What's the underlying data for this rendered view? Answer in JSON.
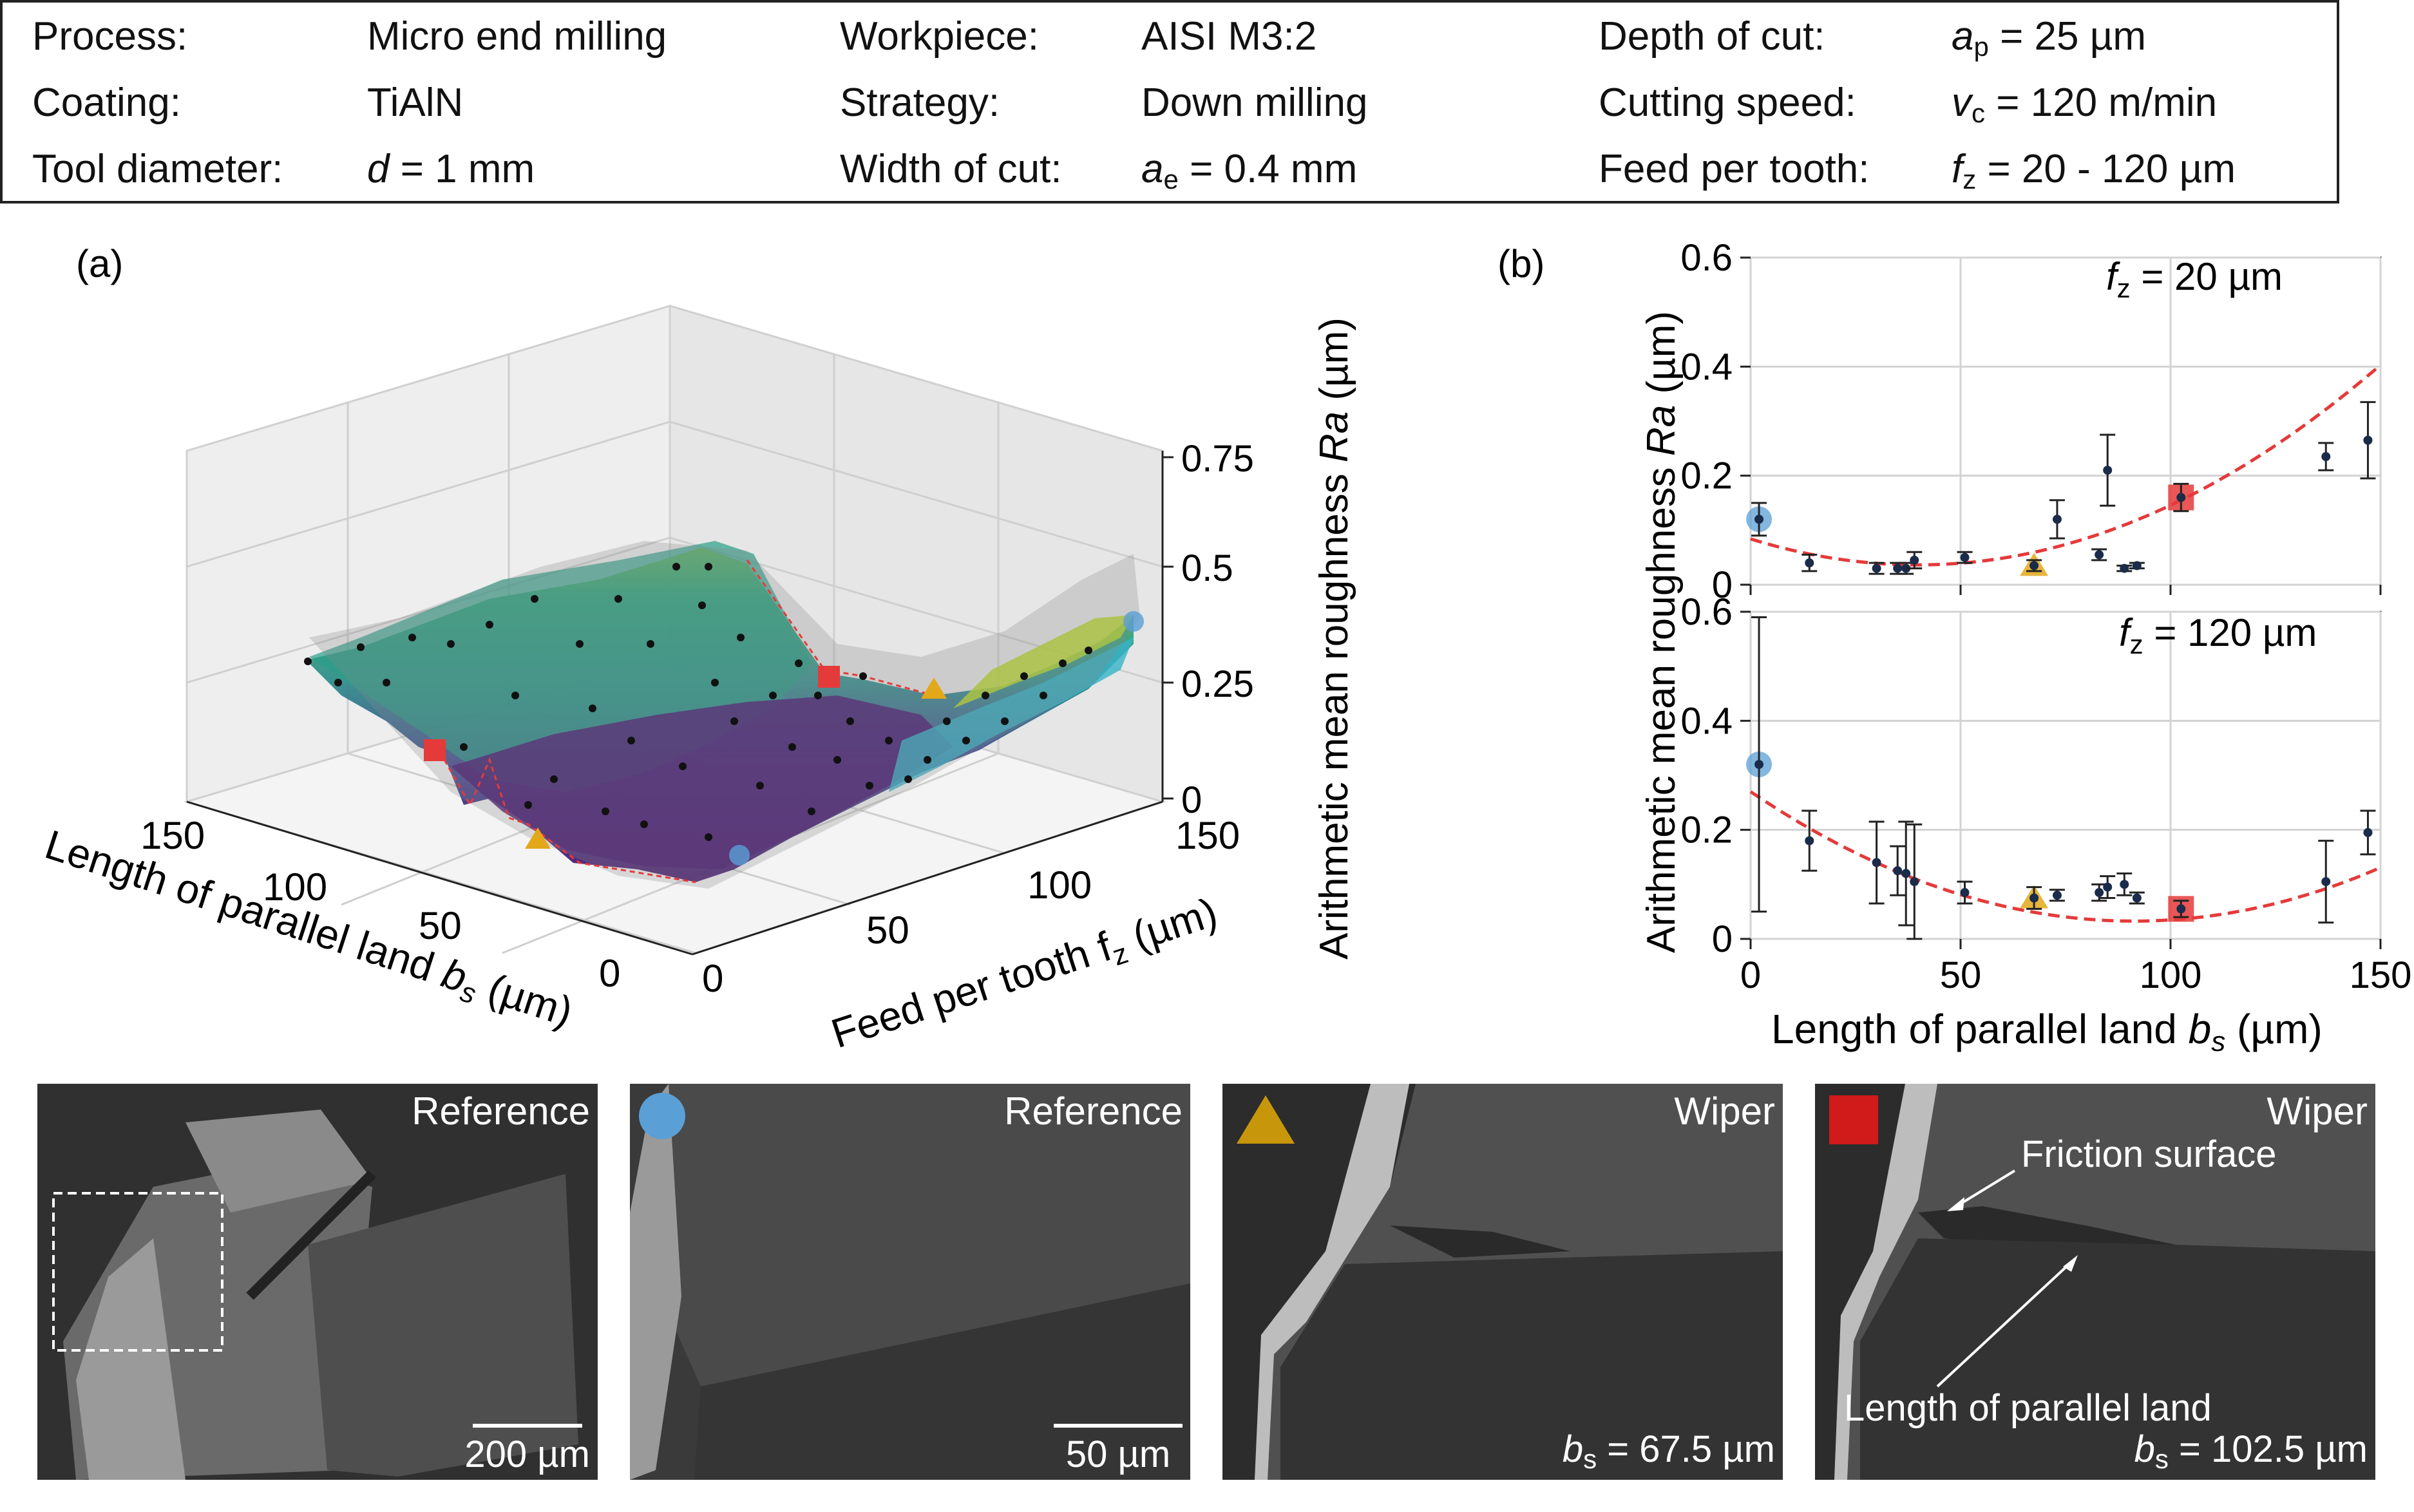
{
  "params": {
    "col1": [
      {
        "label": "Process:",
        "value": "Micro end milling"
      },
      {
        "label": "Coating:",
        "value": "TiAlN"
      },
      {
        "label": "Tool diameter:",
        "value_var": "d",
        "value_rest": " = 1 mm"
      }
    ],
    "col2": [
      {
        "label": "Workpiece:",
        "value": "AISI M3:2"
      },
      {
        "label": "Strategy:",
        "value": "Down milling"
      },
      {
        "label": "Width of cut:",
        "value_var": "a",
        "value_sub": "e",
        "value_rest": " = 0.4 mm"
      }
    ],
    "col3": [
      {
        "label": "Depth of cut:",
        "value_var": "a",
        "value_sub": "p",
        "value_rest": " = 25 µm"
      },
      {
        "label": "Cutting speed:",
        "value_var": "v",
        "value_sub": "c",
        "value_rest": " = 120 m/min"
      },
      {
        "label": "Feed per tooth:",
        "value_var": "f",
        "value_sub": "z",
        "value_rest": " = 20 - 120 µm"
      }
    ]
  },
  "panel_a": {
    "label": "(a)",
    "z_label_main": "Arithmetic mean roughness ",
    "z_label_var": "Ra",
    "z_label_unit": " (µm)",
    "z_ticks": [
      "0",
      "0.25",
      "0.5",
      "0.75"
    ],
    "x_label_main": "Length of parallel land ",
    "x_label_var": "b",
    "x_label_sub": "s",
    "x_label_unit": " (µm)",
    "x_ticks": [
      "150",
      "100",
      "50",
      "0"
    ],
    "y_label_main": "Feed per tooth f",
    "y_label_sub": "z",
    "y_label_unit": " (µm)",
    "y_ticks": [
      "0",
      "50",
      "100",
      "150"
    ]
  },
  "panel_b": {
    "label": "(b)",
    "ylabel_main": "Arithmetic mean roughness ",
    "ylabel_var": "Ra",
    "ylabel_unit": " (µm)",
    "xlabel_main": "Length of parallel land ",
    "xlabel_var": "b",
    "xlabel_sub": "s",
    "xlabel_unit": " (µm)",
    "x_ticks": [
      "0",
      "50",
      "100",
      "150"
    ],
    "y_ticks": [
      "0",
      "0.2",
      "0.4",
      "0.6"
    ],
    "top_annot_var": "f",
    "top_annot_sub": "z",
    "top_annot_rest": " = 20 µm",
    "bot_annot_var": "f",
    "bot_annot_sub": "z",
    "bot_annot_rest": " = 120 µm"
  },
  "chart_data": [
    {
      "type": "scatter",
      "title": "fz = 20 µm",
      "xlabel": "Length of parallel land bs (µm)",
      "ylabel": "Arithmetic mean roughness Ra (µm)",
      "xlim": [
        0,
        150
      ],
      "ylim": [
        0,
        0.6
      ],
      "points": [
        {
          "x": 2,
          "y": 0.12,
          "err": 0.03
        },
        {
          "x": 14,
          "y": 0.04,
          "err": 0.015
        },
        {
          "x": 30,
          "y": 0.03,
          "err": 0.01
        },
        {
          "x": 35,
          "y": 0.03,
          "err": 0.01
        },
        {
          "x": 37,
          "y": 0.03,
          "err": 0.01
        },
        {
          "x": 39,
          "y": 0.045,
          "err": 0.015
        },
        {
          "x": 51,
          "y": 0.05,
          "err": 0.01
        },
        {
          "x": 67.5,
          "y": 0.035,
          "err": 0.01
        },
        {
          "x": 73,
          "y": 0.12,
          "err": 0.035
        },
        {
          "x": 83,
          "y": 0.055,
          "err": 0.01
        },
        {
          "x": 85,
          "y": 0.21,
          "err": 0.065
        },
        {
          "x": 89,
          "y": 0.03,
          "err": 0.005
        },
        {
          "x": 92,
          "y": 0.035,
          "err": 0.005
        },
        {
          "x": 102.5,
          "y": 0.16,
          "err": 0.025
        },
        {
          "x": 137,
          "y": 0.235,
          "err": 0.025
        },
        {
          "x": 147,
          "y": 0.265,
          "err": 0.07
        }
      ],
      "fit": {
        "type": "quadratic",
        "a": 3.018e-05,
        "b": -0.0024,
        "c": 0.084
      },
      "highlight": [
        {
          "marker": "circle",
          "color": "#5a9fd6",
          "x": 2,
          "y": 0.12
        },
        {
          "marker": "triangle",
          "color": "#e3a81a",
          "x": 67.5,
          "y": 0.035
        },
        {
          "marker": "square",
          "color": "#e53a3a",
          "x": 102.5,
          "y": 0.16
        }
      ]
    },
    {
      "type": "scatter",
      "title": "fz = 120 µm",
      "xlabel": "Length of parallel land bs (µm)",
      "ylabel": "Arithmetic mean roughness Ra (µm)",
      "xlim": [
        0,
        150
      ],
      "ylim": [
        0,
        0.6
      ],
      "points": [
        {
          "x": 2,
          "y": 0.32,
          "err": 0.27
        },
        {
          "x": 14,
          "y": 0.18,
          "err": 0.055
        },
        {
          "x": 30,
          "y": 0.14,
          "err": 0.075
        },
        {
          "x": 35,
          "y": 0.125,
          "err": 0.045
        },
        {
          "x": 37,
          "y": 0.12,
          "err": 0.095
        },
        {
          "x": 39,
          "y": 0.105,
          "err": 0.105
        },
        {
          "x": 51,
          "y": 0.085,
          "err": 0.02
        },
        {
          "x": 67.5,
          "y": 0.075,
          "err": 0.02
        },
        {
          "x": 73,
          "y": 0.08,
          "err": 0.01
        },
        {
          "x": 83,
          "y": 0.085,
          "err": 0.015
        },
        {
          "x": 85,
          "y": 0.095,
          "err": 0.02
        },
        {
          "x": 89,
          "y": 0.1,
          "err": 0.02
        },
        {
          "x": 92,
          "y": 0.075,
          "err": 0.01
        },
        {
          "x": 102.5,
          "y": 0.055,
          "err": 0.015
        },
        {
          "x": 137,
          "y": 0.105,
          "err": 0.075
        },
        {
          "x": 147,
          "y": 0.195,
          "err": 0.04
        }
      ],
      "fit": {
        "type": "quadratic",
        "a": 2.848e-05,
        "b": -0.0052,
        "c": 0.27
      },
      "highlight": [
        {
          "marker": "circle",
          "color": "#5a9fd6",
          "x": 2,
          "y": 0.32
        },
        {
          "marker": "triangle",
          "color": "#e3a81a",
          "x": 67.5,
          "y": 0.075
        },
        {
          "marker": "square",
          "color": "#e53a3a",
          "x": 102.5,
          "y": 0.055
        }
      ]
    }
  ],
  "sem": [
    {
      "title": "Reference",
      "scale": "200 µm"
    },
    {
      "title": "Reference",
      "scale": "50 µm"
    },
    {
      "title": "Wiper",
      "bs_var": "b",
      "bs_sub": "s",
      "bs_rest": " = 67.5 µm"
    },
    {
      "title": "Wiper",
      "bs_var": "b",
      "bs_sub": "s",
      "bs_rest": " = 102.5 µm",
      "annot_friction": "Friction surface",
      "annot_land": "Length of parallel land"
    }
  ],
  "colors": {
    "circle": "#5a9fd6",
    "triangle": "#e3a81a",
    "square": "#e53a3a",
    "fit": "#e53a3a",
    "points": "#1b2b4a"
  }
}
